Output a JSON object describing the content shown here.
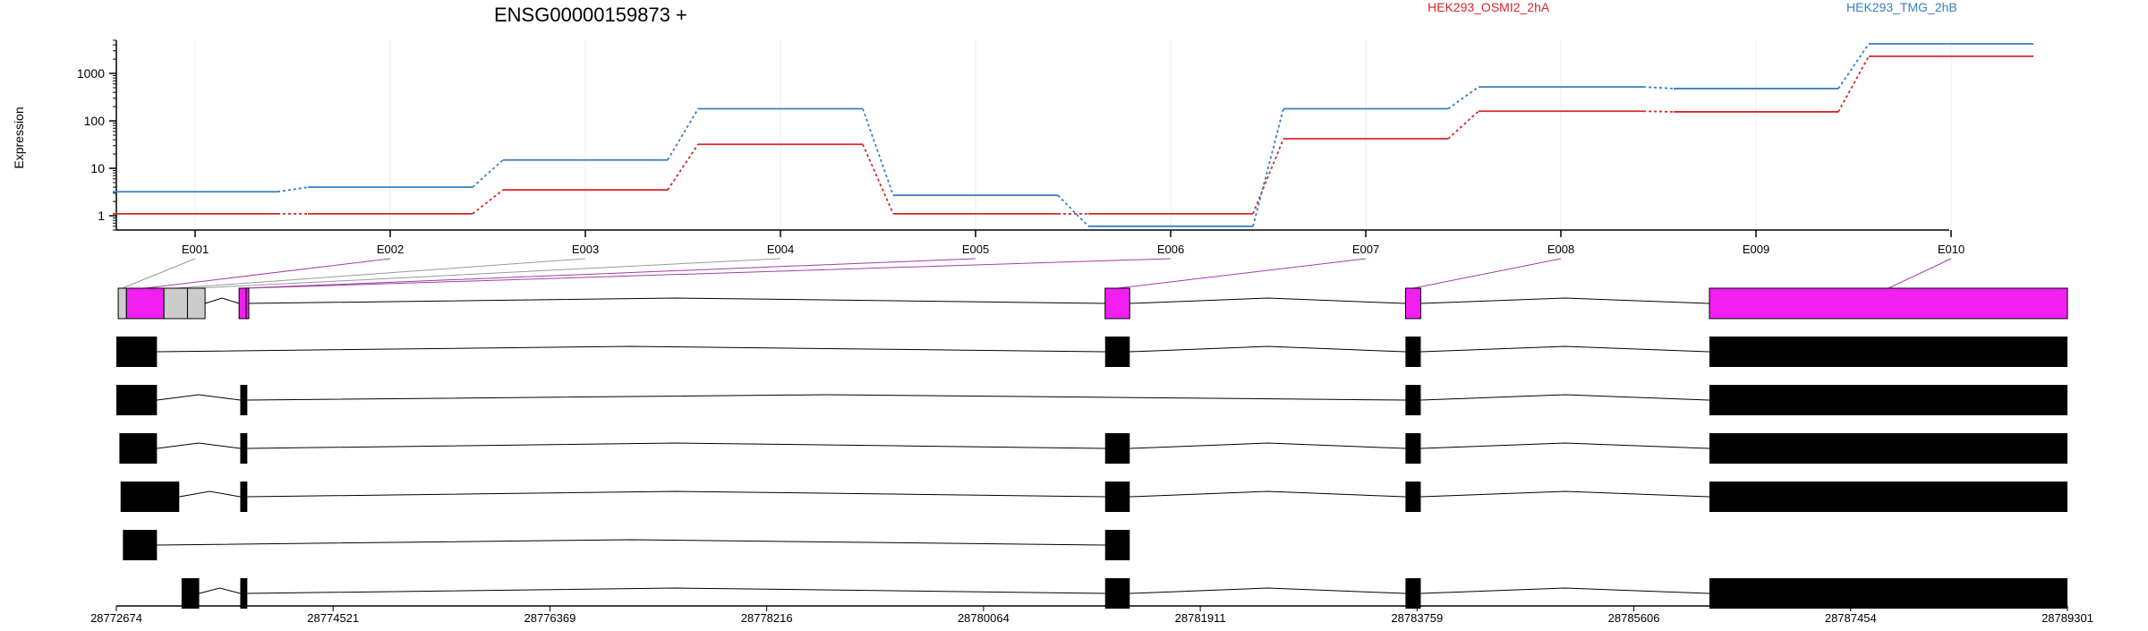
{
  "chart_data": {
    "type": "line",
    "title": "ENSG00000159873 +",
    "ylabel": "Expression",
    "y_scale": "log10",
    "ylim": [
      0.5,
      5000
    ],
    "y_ticks": [
      1,
      10,
      100,
      1000
    ],
    "y_tick_labels": [
      "1",
      "10",
      "100",
      "1000"
    ],
    "categories": [
      "E001",
      "E002",
      "E003",
      "E004",
      "E005",
      "E006",
      "E007",
      "E008",
      "E009",
      "E010"
    ],
    "series": [
      {
        "name": "HEK293_OSMI2_2hA",
        "color": "#d62728",
        "values": [
          1.1,
          1.1,
          3.5,
          32,
          1.1,
          1.1,
          42,
          160,
          155,
          2300
        ]
      },
      {
        "name": "HEK293_TMG_2hB",
        "color": "#3a7fbf",
        "values": [
          3.2,
          4,
          15,
          180,
          2.7,
          0.6,
          180,
          520,
          480,
          4200
        ]
      }
    ],
    "grid": true,
    "legend_placement": "top",
    "exon_colors": {
      "highlight": "#f21ff2",
      "grey": "#cccccc",
      "transcript": "#000000",
      "link_line": "#a040a0",
      "link_grey": "#999999"
    },
    "genome_axis": {
      "range": [
        28772674,
        28789301
      ],
      "tick_labels": [
        "28772674",
        "28774521",
        "28776369",
        "28778216",
        "28780064",
        "28781911",
        "28783759",
        "28785606",
        "28787454",
        "28789301"
      ]
    },
    "gene_model": {
      "exons": [
        {
          "name": "E001",
          "start": 28772690,
          "end": 28772760,
          "color": "grey",
          "links_to_tick": "E001"
        },
        {
          "name": "E002",
          "start": 28772760,
          "end": 28773080,
          "color": "highlight",
          "links_to_tick": "E002"
        },
        {
          "name": "E003",
          "start": 28773080,
          "end": 28773280,
          "color": "grey",
          "links_to_tick": "E003"
        },
        {
          "name": "E004",
          "start": 28773280,
          "end": 28773430,
          "color": "grey",
          "links_to_tick": "E004"
        },
        {
          "name": "E005",
          "start": 28773720,
          "end": 28773780,
          "color": "highlight",
          "links_to_tick": "E005"
        },
        {
          "name": "E006",
          "start": 28773780,
          "end": 28773790,
          "color": "highlight",
          "links_to_tick": "E006"
        },
        {
          "name": "E007",
          "start": 28781100,
          "end": 28781310,
          "color": "highlight",
          "links_to_tick": "E007"
        },
        {
          "name": "E008",
          "start": 28783660,
          "end": 28783790,
          "color": "highlight",
          "links_to_tick": "E008"
        },
        {
          "name": "E010",
          "start": 28786250,
          "end": 28789301,
          "color": "highlight",
          "links_to_tick": "E010"
        }
      ],
      "transcripts": [
        {
          "exons": [
            [
              28772674,
              28773020
            ],
            [
              28781100,
              28781310
            ],
            [
              28783660,
              28783790
            ],
            [
              28786250,
              28789301
            ]
          ]
        },
        {
          "exons": [
            [
              28772674,
              28773020
            ],
            [
              28773730,
              28773790
            ],
            [
              28783660,
              28783790
            ],
            [
              28786250,
              28789301
            ]
          ]
        },
        {
          "exons": [
            [
              28772700,
              28773020
            ],
            [
              28773730,
              28773790
            ],
            [
              28781100,
              28781310
            ],
            [
              28783660,
              28783790
            ],
            [
              28786250,
              28789301
            ]
          ]
        },
        {
          "exons": [
            [
              28772710,
              28773210
            ],
            [
              28773730,
              28773790
            ],
            [
              28781100,
              28781310
            ],
            [
              28783660,
              28783790
            ],
            [
              28786250,
              28789301
            ]
          ]
        },
        {
          "exons": [
            [
              28772730,
              28773020
            ],
            [
              28781100,
              28781310
            ]
          ]
        },
        {
          "exons": [
            [
              28773230,
              28773380
            ],
            [
              28773730,
              28773790
            ],
            [
              28781100,
              28781310
            ],
            [
              28783660,
              28783790
            ],
            [
              28786250,
              28789301
            ]
          ]
        }
      ]
    }
  }
}
